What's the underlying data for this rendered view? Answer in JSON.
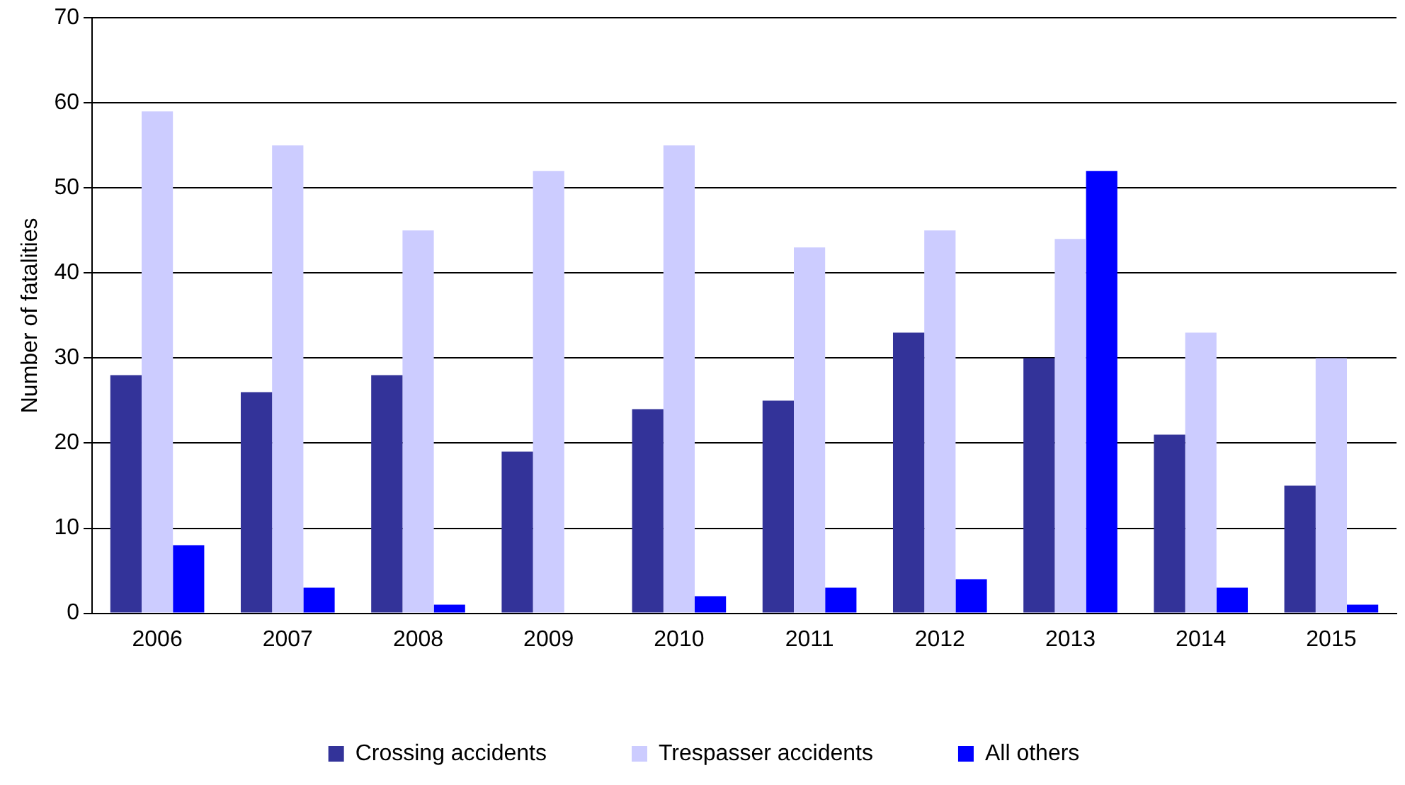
{
  "chart_data": {
    "type": "bar",
    "ylabel": "Number of fatalities",
    "categories": [
      "2006",
      "2007",
      "2008",
      "2009",
      "2010",
      "2011",
      "2012",
      "2013",
      "2014",
      "2015"
    ],
    "series": [
      {
        "name": "Crossing accidents",
        "color": "#333399",
        "values": [
          28,
          26,
          28,
          19,
          24,
          25,
          33,
          30,
          21,
          15
        ]
      },
      {
        "name": "Trespasser accidents",
        "color": "#ccccff",
        "values": [
          59,
          55,
          45,
          52,
          55,
          43,
          45,
          44,
          33,
          30
        ]
      },
      {
        "name": "All others",
        "color": "#0000ff",
        "values": [
          8,
          3,
          1,
          0,
          2,
          3,
          4,
          52,
          3,
          1
        ]
      }
    ],
    "ylim": [
      0,
      70
    ],
    "yticks": [
      0,
      10,
      20,
      30,
      40,
      50,
      60,
      70
    ],
    "grid": "y",
    "legend": "bottom"
  }
}
